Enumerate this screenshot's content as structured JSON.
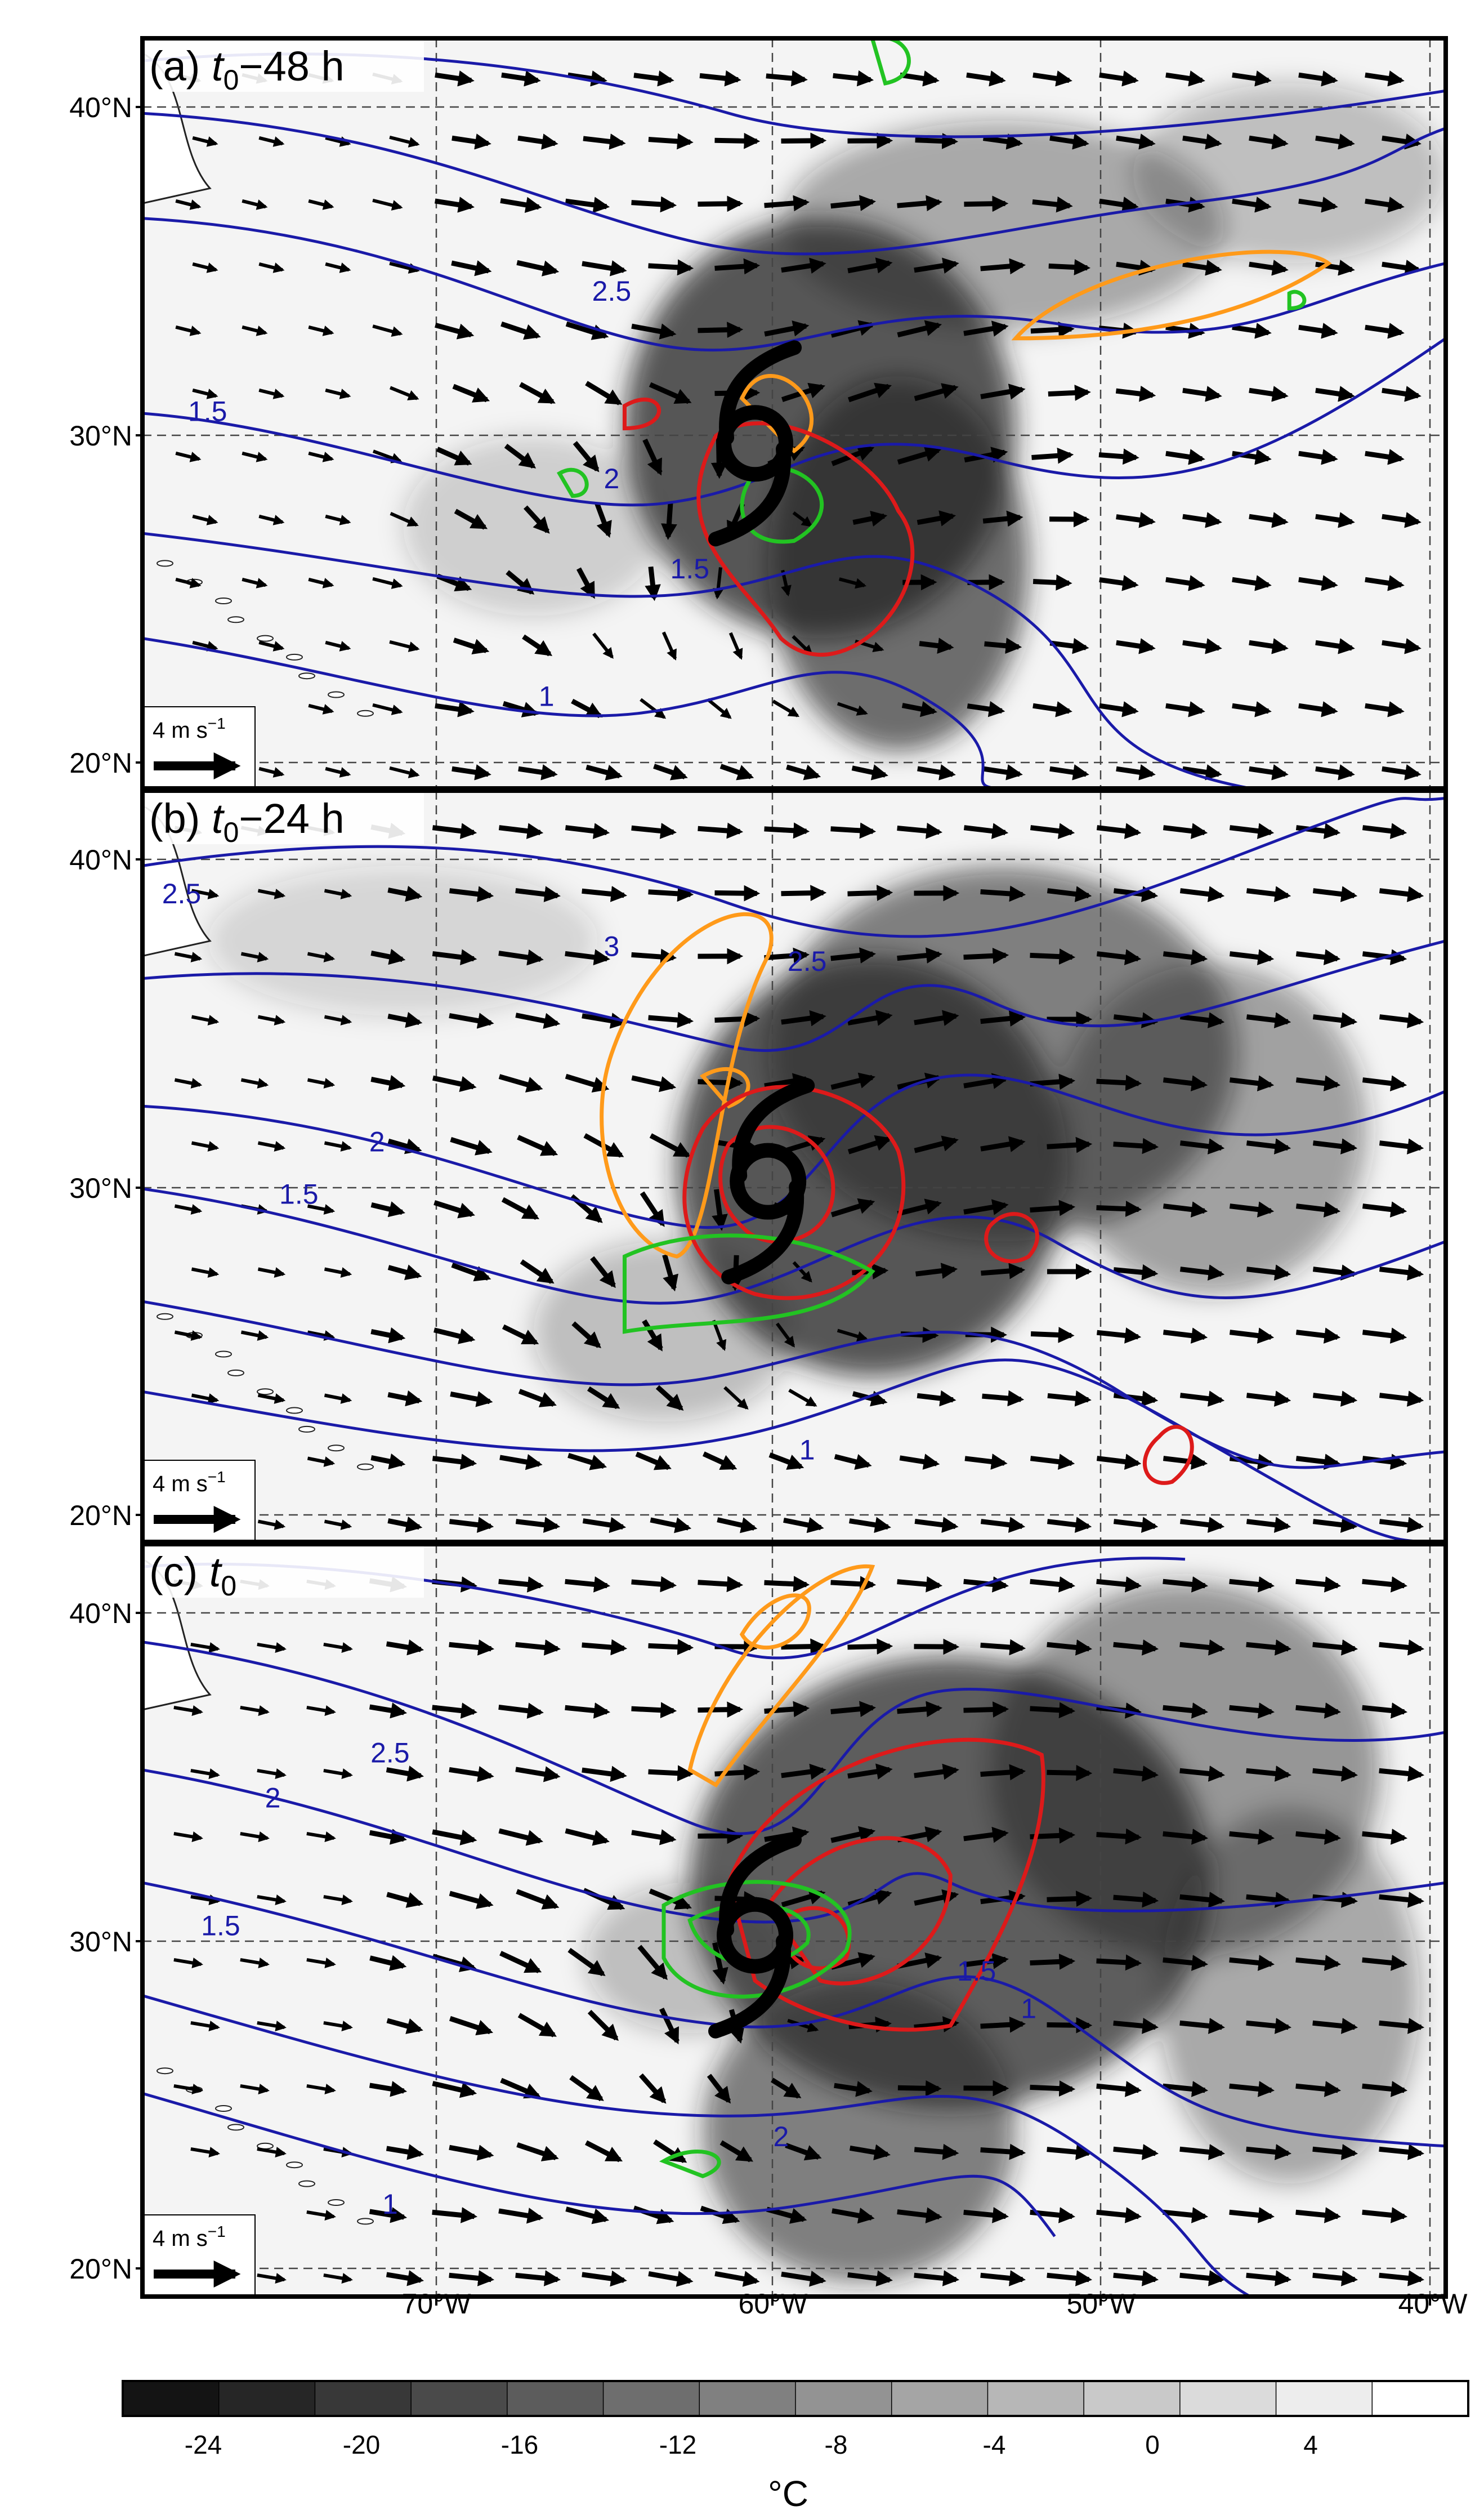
{
  "panels": [
    {
      "label_prefix": "(a) ",
      "label_t": "t",
      "label_sub": "0",
      "label_suffix": "−48 h",
      "contour_labels": [
        "2.5",
        "1.5",
        "2",
        "1.5",
        "1"
      ]
    },
    {
      "label_prefix": "(b) ",
      "label_t": "t",
      "label_sub": "0",
      "label_suffix": "−24 h",
      "contour_labels": [
        "2.5",
        "3",
        "2.5",
        "2",
        "1.5",
        "1"
      ]
    },
    {
      "label_prefix": "(c) ",
      "label_t": "t",
      "label_sub": "0",
      "label_suffix": "",
      "contour_labels": [
        "2.5",
        "2",
        "1.5",
        "1.5",
        "2",
        "1",
        "1"
      ]
    }
  ],
  "lat_labels": [
    "40°N",
    "30°N",
    "20°N"
  ],
  "lon_labels": [
    "70°W",
    "60°W",
    "50°W",
    "40°W"
  ],
  "reference_vector": {
    "magnitude": "4",
    "unit": "m s",
    "exponent": "−1"
  },
  "colorbar": {
    "ticks": [
      "-24",
      "-20",
      "-16",
      "-12",
      "-8",
      "-4",
      "0",
      "4"
    ],
    "unit": "°C",
    "levels": 14
  },
  "colors": {
    "geopotential_contour": "#1a1aa8",
    "label_blue": "#1a1aa8",
    "red_contour": "#dd1a1a",
    "orange_contour": "#ff9a1a",
    "green_contour": "#22c322",
    "cyclone_symbol": "#000000",
    "frame": "#000000"
  }
}
